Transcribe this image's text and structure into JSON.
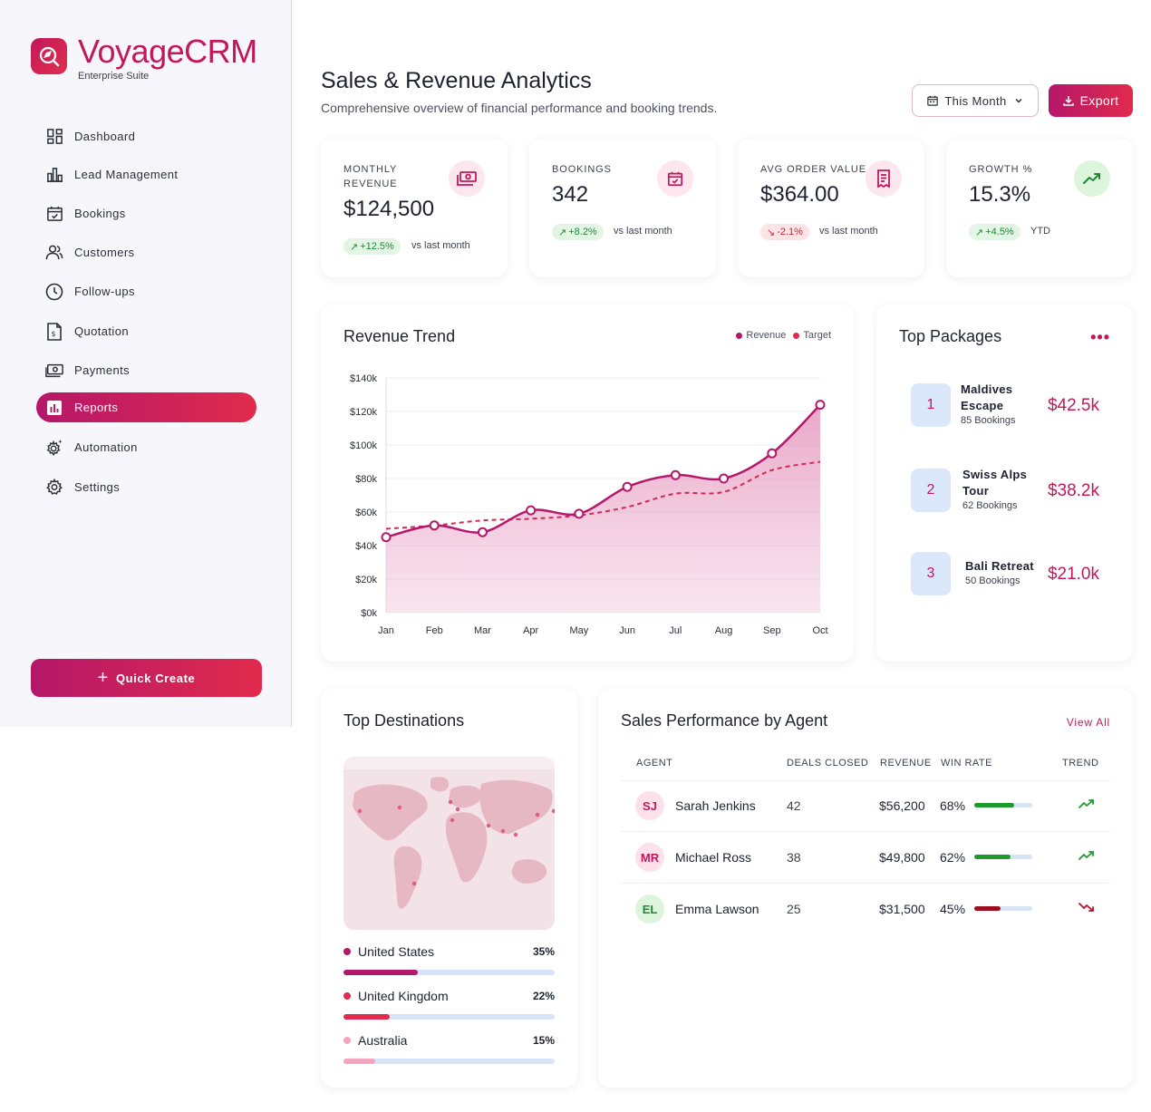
{
  "sidebar": {
    "brand": "VoyageCRM",
    "brand_sub": "Enterprise Suite",
    "logo_icon": "compass-search-icon",
    "items": [
      {
        "label": "Dashboard",
        "icon": "dashboard-icon",
        "active": false
      },
      {
        "label": "Lead Management",
        "icon": "chart-bars-icon",
        "active": false
      },
      {
        "label": "Bookings",
        "icon": "calendar-check-icon",
        "active": false
      },
      {
        "label": "Customers",
        "icon": "users-icon",
        "active": false
      },
      {
        "label": "Follow-ups",
        "icon": "clock-icon",
        "active": false
      },
      {
        "label": "Quotation",
        "icon": "invoice-icon",
        "active": false
      },
      {
        "label": "Payments",
        "icon": "cash-icon",
        "active": false
      },
      {
        "label": "Reports",
        "icon": "report-icon",
        "active": true
      },
      {
        "label": "Automation",
        "icon": "gear-sparkle-icon",
        "active": false
      },
      {
        "label": "Settings",
        "icon": "gear-icon",
        "active": false
      }
    ],
    "quick_create": "Quick Create"
  },
  "header": {
    "title": "Sales & Revenue Analytics",
    "subtitle": "Comprehensive overview of financial performance and booking trends.",
    "period_label": "This Month",
    "export_label": "Export"
  },
  "kpis": [
    {
      "label": "MONTHLY REVENUE",
      "value": "$124,500",
      "badge": "+12.5%",
      "trend": "up",
      "note": "vs last month",
      "icon": "cash-icon"
    },
    {
      "label": "BOOKINGS",
      "value": "342",
      "badge": "+8.2%",
      "trend": "up",
      "note": "vs last month",
      "icon": "calendar-check-icon"
    },
    {
      "label": "AVG ORDER VALUE",
      "value": "$364.00",
      "badge": "-2.1%",
      "trend": "down",
      "note": "vs last month",
      "icon": "receipt-icon"
    },
    {
      "label": "GROWTH %",
      "value": "15.3%",
      "badge": "+4.5%",
      "trend": "up",
      "note": "YTD",
      "icon": "trending-up-icon"
    }
  ],
  "revenue_trend": {
    "title": "Revenue Trend",
    "legend": [
      "Revenue",
      "Target"
    ],
    "colors": {
      "revenue": "#b5176a",
      "target": "#e02b4c"
    }
  },
  "chart_data": {
    "type": "area",
    "title": "Revenue Trend",
    "categories": [
      "Jan",
      "Feb",
      "Mar",
      "Apr",
      "May",
      "Jun",
      "Jul",
      "Aug",
      "Sep",
      "Oct"
    ],
    "series": [
      {
        "name": "Revenue",
        "values": [
          45000,
          52000,
          48000,
          61000,
          59000,
          75000,
          82000,
          80000,
          95000,
          124000
        ]
      },
      {
        "name": "Target",
        "values": [
          50000,
          52000,
          55000,
          56000,
          58000,
          63000,
          71000,
          72000,
          85000,
          90000
        ]
      }
    ],
    "yticks": [
      "$0k",
      "$20k",
      "$40k",
      "$60k",
      "$80k",
      "$100k",
      "$120k",
      "$140k"
    ],
    "ylim": [
      0,
      140000
    ],
    "grid": true,
    "legend_position": "top-right"
  },
  "packages": {
    "title": "Top Packages",
    "menu_icon": "more-horizontal-icon",
    "items": [
      {
        "rank": "1",
        "name_line1": "Maldives",
        "name_line2": "Escape",
        "count": "85 Bookings",
        "value": "$42.5k"
      },
      {
        "rank": "2",
        "name_line1": "Swiss Alps",
        "name_line2": "Tour",
        "count": "62 Bookings",
        "value": "$38.2k"
      },
      {
        "rank": "3",
        "name_line1": "Bali Retreat",
        "name_line2": "",
        "count": "50 Bookings",
        "value": "$21.0k"
      }
    ]
  },
  "destinations": {
    "title": "Top Destinations",
    "items": [
      {
        "name": "United States",
        "pct": "35%",
        "fill": 0.35,
        "color": "#b5176a"
      },
      {
        "name": "United Kingdom",
        "pct": "22%",
        "fill": 0.22,
        "color": "#e02b4c"
      },
      {
        "name": "Australia",
        "pct": "15%",
        "fill": 0.15,
        "color": "#f6a3be"
      }
    ]
  },
  "agents": {
    "title": "Sales Performance by Agent",
    "view_all": "View All",
    "columns": [
      "AGENT",
      "DEALS CLOSED",
      "REVENUE",
      "WIN RATE",
      "TREND"
    ],
    "rows": [
      {
        "initials": "SJ",
        "name": "Sarah Jenkins",
        "deals": "42",
        "revenue": "$56,200",
        "win": "68%",
        "win_fill": 0.68,
        "trend": "up",
        "avatar_bg": "#fde1ea",
        "avatar_fg": "#c2185b"
      },
      {
        "initials": "MR",
        "name": "Michael Ross",
        "deals": "38",
        "revenue": "$49,800",
        "win": "62%",
        "win_fill": 0.62,
        "trend": "up",
        "avatar_bg": "#fde1ea",
        "avatar_fg": "#c2185b"
      },
      {
        "initials": "EL",
        "name": "Emma Lawson",
        "deals": "25",
        "revenue": "$31,500",
        "win": "45%",
        "win_fill": 0.45,
        "trend": "down",
        "avatar_bg": "#dcf5dc",
        "avatar_fg": "#238636"
      }
    ]
  }
}
